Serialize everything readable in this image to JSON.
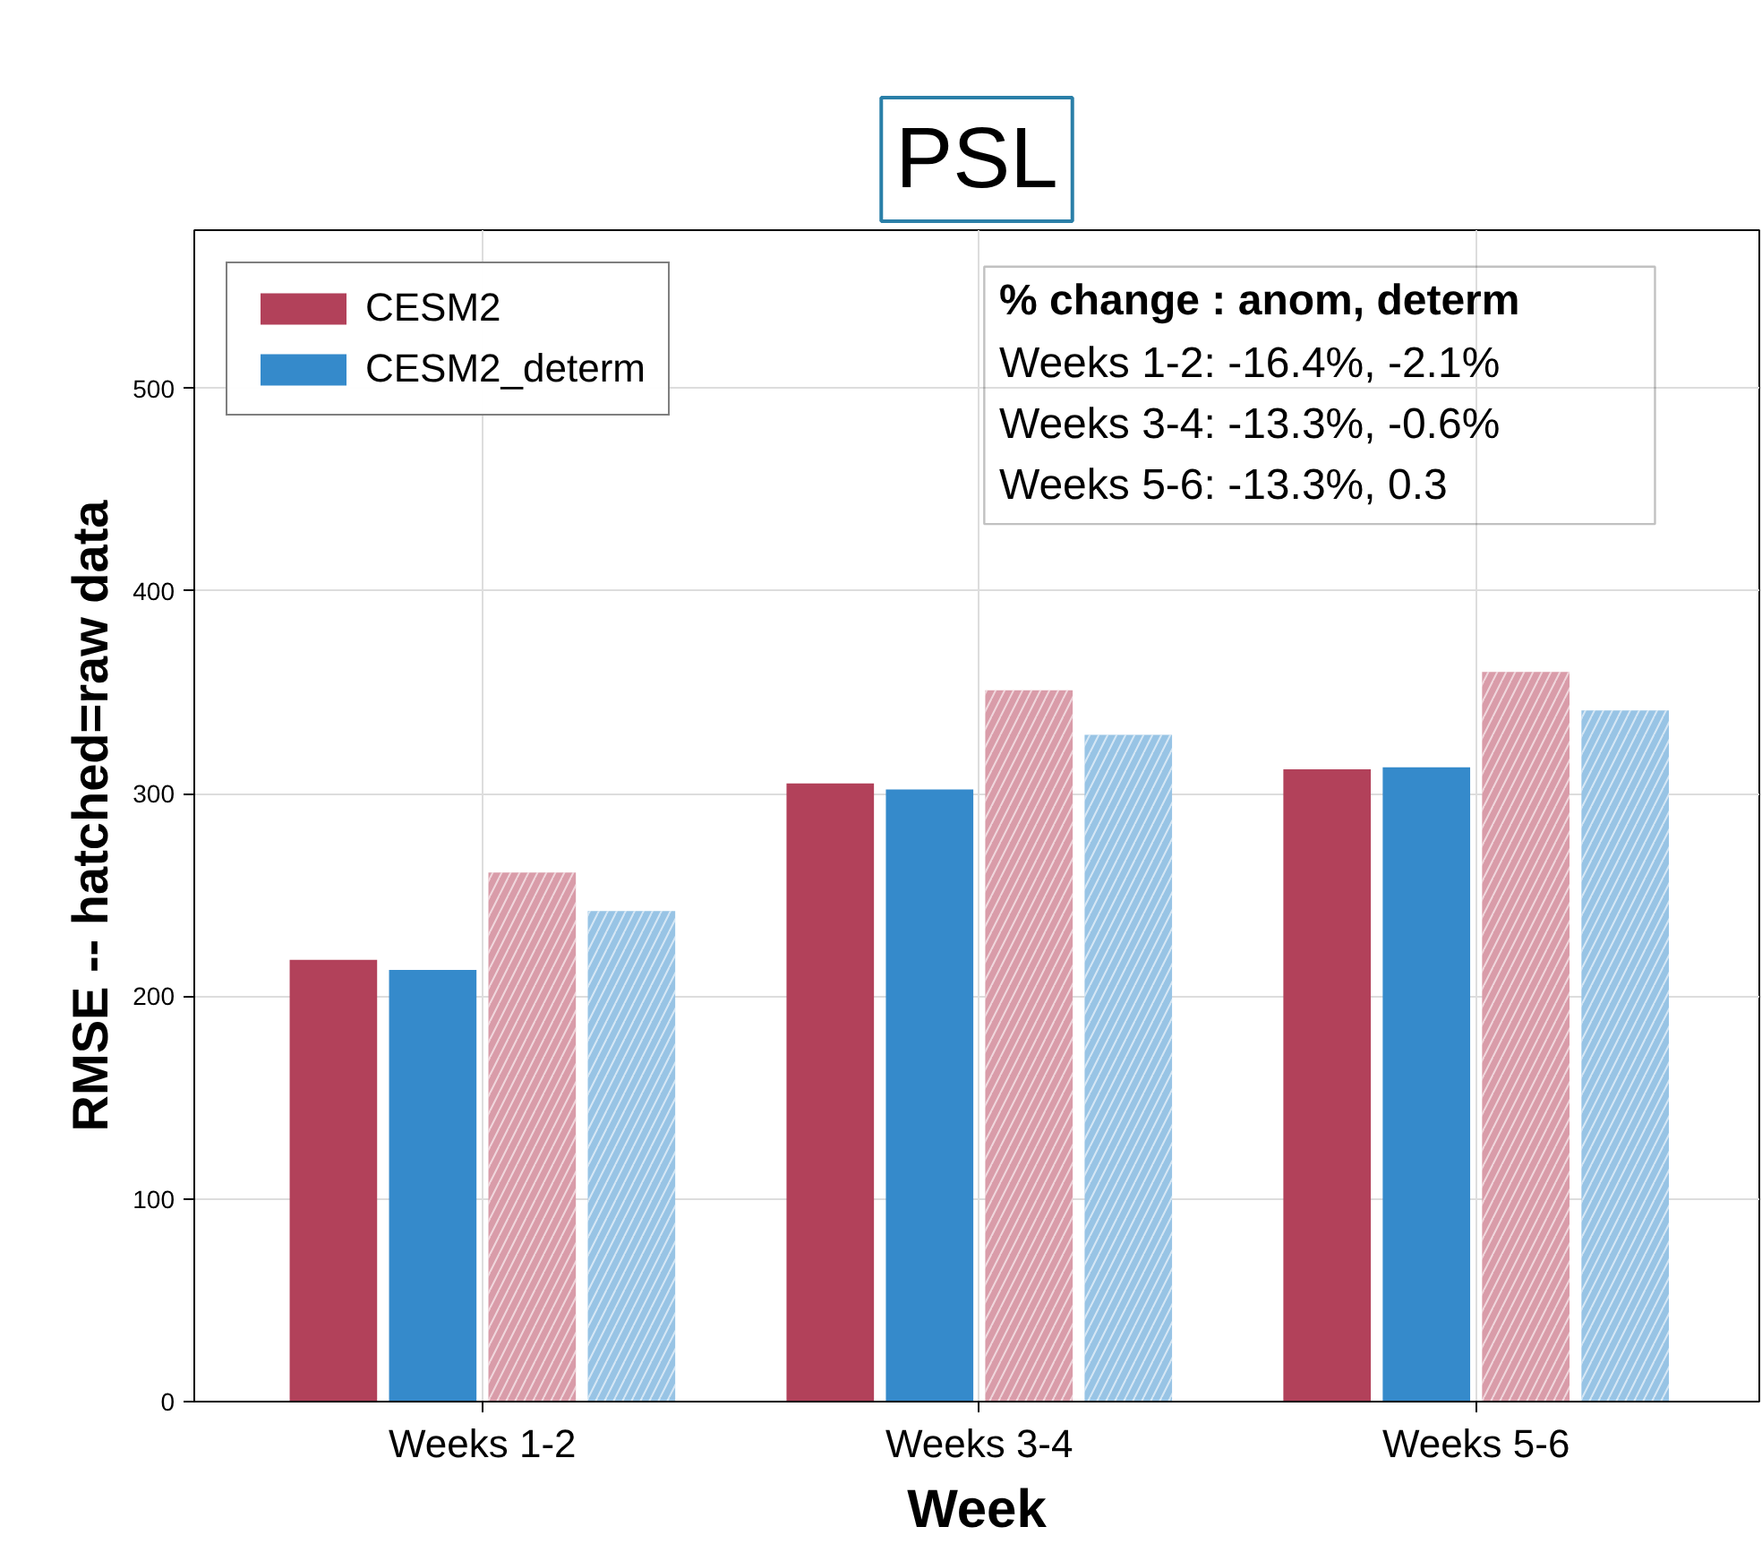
{
  "chart_data": {
    "type": "bar",
    "title": "PSL",
    "xlabel": "Week",
    "ylabel": "RMSE -- hatched=raw data",
    "categories": [
      "Weeks 1-2",
      "Weeks 3-4",
      "Weeks 5-6"
    ],
    "series": [
      {
        "name": "CESM2",
        "color": "#b2415a",
        "values": [
          218,
          305,
          312
        ]
      },
      {
        "name": "CESM2_determ",
        "color": "#358acb",
        "values": [
          213,
          302,
          313
        ]
      },
      {
        "color": "#d99ca9",
        "values": [
          261,
          351,
          360
        ]
      },
      {
        "color": "#98c4e5",
        "values": [
          242,
          329,
          341
        ]
      }
    ],
    "ylim": [
      0,
      578
    ],
    "yticks": [
      0,
      100,
      200,
      300,
      400,
      500
    ],
    "grid": true,
    "legend": "top left",
    "annotations": [
      "% change :  anom, determ",
      "Weeks 1-2: -16.4%, -2.1%",
      "Weeks 3-4: -13.3%, -0.6%",
      "Weeks 5-6: -13.3%, 0.3"
    ]
  }
}
